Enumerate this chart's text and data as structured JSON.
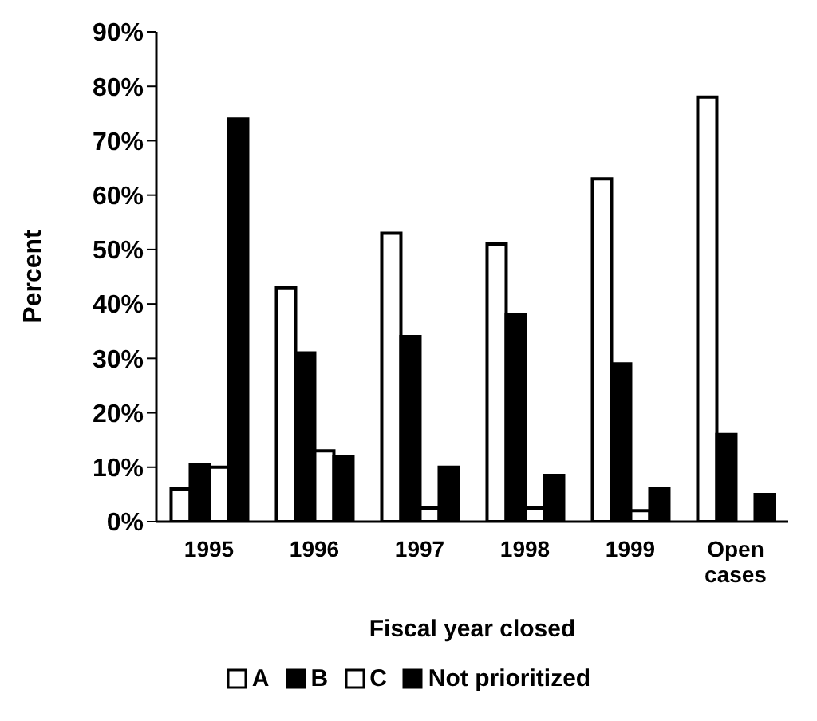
{
  "chart_data": {
    "type": "bar",
    "xlabel": "Fiscal year closed",
    "ylabel": "Percent",
    "categories": [
      "1995",
      "1996",
      "1997",
      "1998",
      "1999",
      "Open cases"
    ],
    "series": [
      {
        "name": "A",
        "color": "#ffffff",
        "values": [
          6,
          43,
          53,
          51,
          63,
          78
        ]
      },
      {
        "name": "B",
        "color": "#000000",
        "values": [
          10.5,
          31,
          34,
          38,
          29,
          16
        ]
      },
      {
        "name": "C",
        "color": "#ffffff",
        "values": [
          10,
          13,
          2.5,
          2.5,
          2,
          null
        ]
      },
      {
        "name": "Not prioritized",
        "color": "#000000",
        "values": [
          74,
          12,
          10,
          8.5,
          6,
          5
        ]
      }
    ],
    "ylim": [
      0,
      90
    ],
    "yticks": [
      {
        "value": 0,
        "label": "0%"
      },
      {
        "value": 10,
        "label": "10%"
      },
      {
        "value": 20,
        "label": "20%"
      },
      {
        "value": 30,
        "label": "30%"
      },
      {
        "value": 40,
        "label": "40%"
      },
      {
        "value": 50,
        "label": "50%"
      },
      {
        "value": 60,
        "label": "60%"
      },
      {
        "value": 70,
        "label": "70%"
      },
      {
        "value": 80,
        "label": "80%"
      },
      {
        "value": 90,
        "label": "90%"
      }
    ],
    "grid": false,
    "legend": "bottom"
  }
}
